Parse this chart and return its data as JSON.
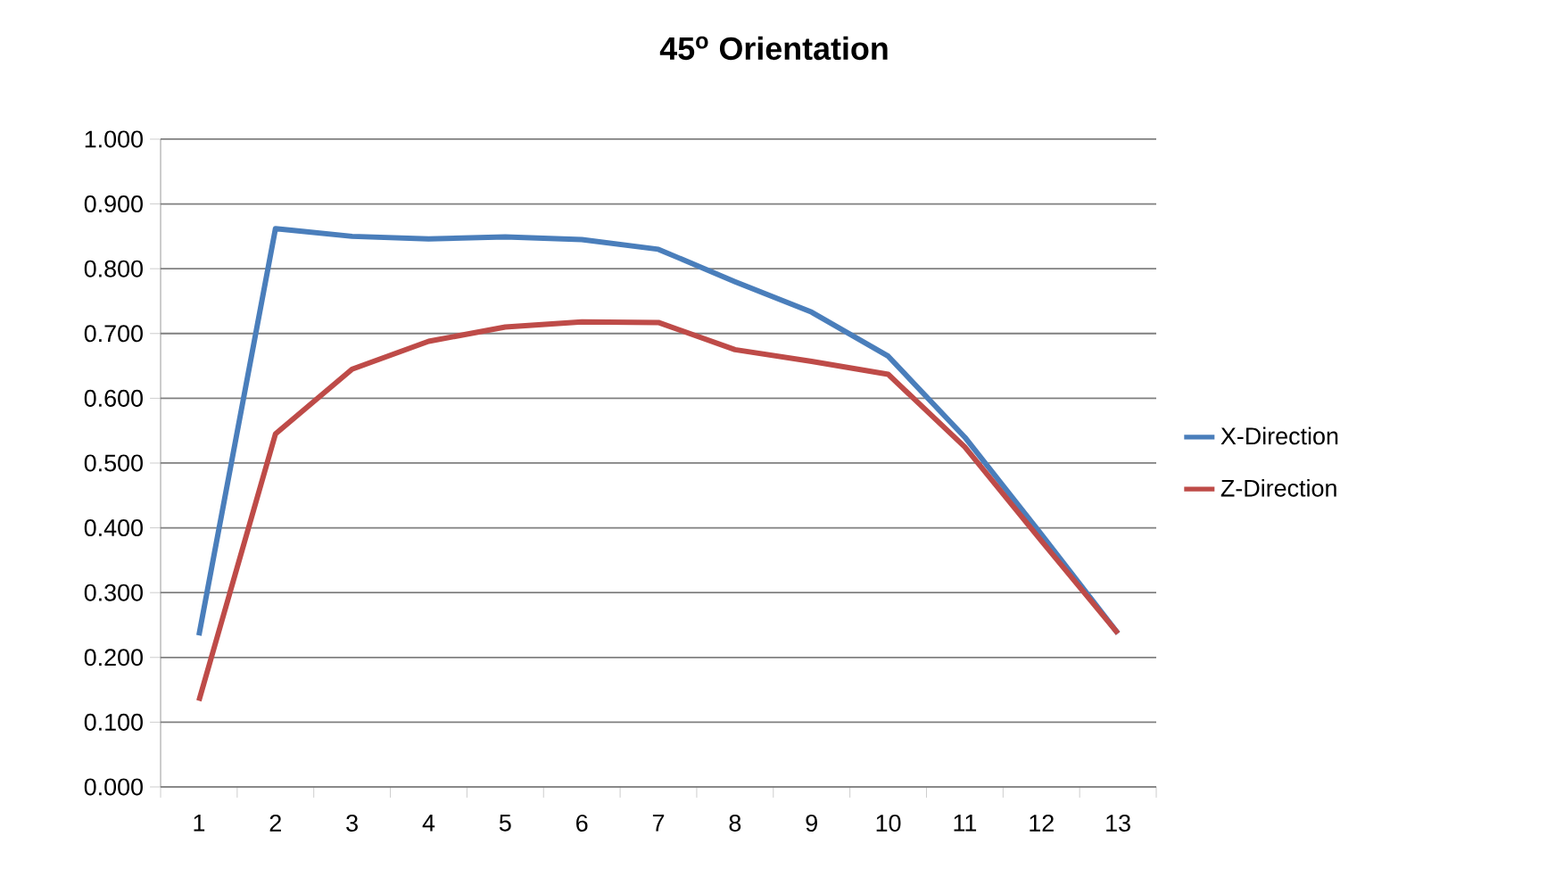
{
  "chart_data": {
    "type": "line",
    "title": "45$^{o}$ Orientation",
    "categories": [
      "1",
      "2",
      "3",
      "4",
      "5",
      "6",
      "7",
      "8",
      "9",
      "10",
      "11",
      "12",
      "13"
    ],
    "series": [
      {
        "name": "X-Direction",
        "color": "#4a7ebb",
        "values": [
          0.234,
          0.862,
          0.85,
          0.846,
          0.849,
          0.845,
          0.83,
          0.78,
          0.733,
          0.665,
          0.54,
          0.39,
          0.237
        ]
      },
      {
        "name": "Z-Direction",
        "color": "#be4b48",
        "values": [
          0.133,
          0.545,
          0.645,
          0.688,
          0.71,
          0.718,
          0.717,
          0.675,
          0.657,
          0.637,
          0.525,
          0.38,
          0.237
        ]
      }
    ],
    "ylim": [
      0,
      1
    ],
    "yticks": [
      {
        "value": 0,
        "label": "0.000"
      },
      {
        "value": 0.1,
        "label": "0.100"
      },
      {
        "value": 0.2,
        "label": "0.200"
      },
      {
        "value": 0.3,
        "label": "0.300"
      },
      {
        "value": 0.4,
        "label": "0.400"
      },
      {
        "value": 0.5,
        "label": "0.500"
      },
      {
        "value": 0.6,
        "label": "0.600"
      },
      {
        "value": 0.7,
        "label": "0.700"
      },
      {
        "value": 0.8,
        "label": "0.800"
      },
      {
        "value": 0.9,
        "label": "0.900"
      },
      {
        "value": 1,
        "label": "1.000"
      }
    ],
    "grid": "y",
    "legend": "right",
    "marker": "none",
    "line_style": "solid"
  }
}
